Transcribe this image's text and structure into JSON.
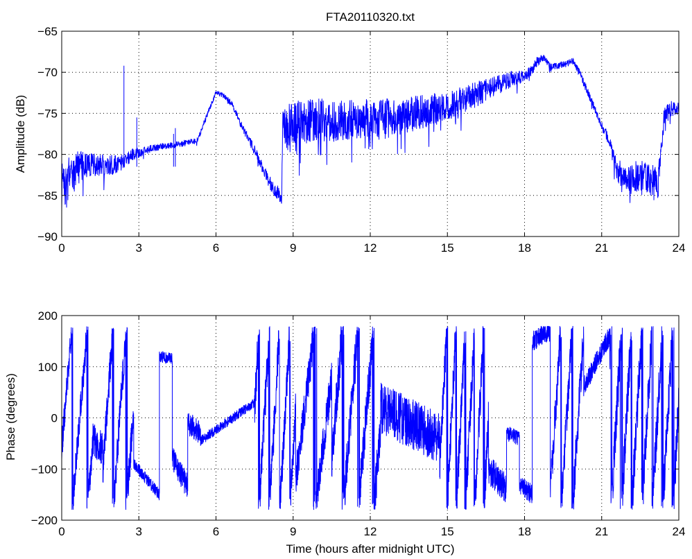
{
  "chart_data": [
    {
      "type": "line",
      "title": "FTA20110320.txt",
      "xlabel": "",
      "ylabel": "Amplitude (dB)",
      "xlim": [
        0,
        24
      ],
      "ylim": [
        -90,
        -65
      ],
      "xticks": [
        "0",
        "3",
        "6",
        "9",
        "12",
        "15",
        "18",
        "21",
        "24"
      ],
      "yticks": [
        "−90",
        "−85",
        "−80",
        "−75",
        "−70",
        "−65"
      ],
      "grid": true,
      "color": "#0000ff",
      "series": [
        {
          "x": [
            0,
            0.1,
            0.3,
            0.5,
            0.7,
            1.0,
            1.5,
            2.0,
            2.3,
            2.5,
            2.8,
            3.0,
            3.5,
            4.0,
            4.5,
            5.0,
            5.3,
            5.5,
            5.8,
            6.0,
            6.3,
            6.6,
            7.0,
            7.5,
            8.0,
            8.3,
            8.55,
            8.6,
            8.8,
            9.5,
            10.5,
            11.5,
            12.5,
            13.5,
            14.5,
            15.5,
            16.5,
            17.5,
            18.0,
            18.3,
            18.5,
            18.8,
            19.0,
            19.3,
            19.6,
            19.9,
            20.2,
            20.6,
            21.0,
            21.3,
            21.6,
            22.0,
            22.5,
            23.0,
            23.2,
            23.4,
            23.6,
            24.0
          ],
          "y": [
            -83.5,
            -84,
            -83,
            -82,
            -81.5,
            -81.3,
            -81.2,
            -81.3,
            -81,
            -80.7,
            -80,
            -79.8,
            -79.2,
            -79,
            -78.8,
            -78.5,
            -78.3,
            -76.5,
            -74,
            -72.5,
            -72.8,
            -73.8,
            -76.5,
            -79.5,
            -83,
            -84.5,
            -85,
            -77,
            -76.5,
            -76,
            -75.8,
            -75.7,
            -75.5,
            -75.2,
            -74.5,
            -73.5,
            -72.2,
            -70.8,
            -70.5,
            -69.7,
            -68.6,
            -68.2,
            -69.5,
            -69.2,
            -69,
            -68.6,
            -70.5,
            -73.5,
            -76.5,
            -78.5,
            -82,
            -83.2,
            -82.5,
            -83.5,
            -84,
            -76,
            -74.5,
            -74.3
          ],
          "noise": [
            2.5,
            2.5,
            3,
            2.5,
            2,
            1.4,
            1.4,
            1.2,
            1,
            0.9,
            0.8,
            0.6,
            0.5,
            0.4,
            0.4,
            0.4,
            0.4,
            0.4,
            0.3,
            0.3,
            0.3,
            0.4,
            0.5,
            0.6,
            0.8,
            1,
            1,
            2.5,
            3,
            2.8,
            2.6,
            2.4,
            2.3,
            2.2,
            2,
            1.8,
            1.4,
            1,
            0.7,
            0.6,
            0.6,
            0.4,
            0.6,
            0.4,
            0.4,
            0.4,
            0.5,
            0.5,
            0.5,
            0.9,
            1.5,
            1.8,
            2,
            2.2,
            2.2,
            1.5,
            1,
            0.8
          ]
        }
      ],
      "annotations": [
        {
          "x": 2.42,
          "y": -69.2
        },
        {
          "x": 2.92,
          "y": -75.5
        },
        {
          "x": 4.35,
          "y": -77.5
        },
        {
          "x": 4.42,
          "y": -76.8
        }
      ]
    },
    {
      "type": "line",
      "title": "",
      "xlabel": "Time (hours after midnight UTC)",
      "ylabel": "Phase (degrees)",
      "xlim": [
        0,
        24
      ],
      "ylim": [
        -200,
        200
      ],
      "xticks": [
        "0",
        "3",
        "6",
        "9",
        "12",
        "15",
        "18",
        "21",
        "24"
      ],
      "yticks": [
        "−200",
        "−100",
        "0",
        "100",
        "200"
      ],
      "grid": true,
      "color": "#0000ff",
      "series": [
        {
          "segments": [
            {
              "x0": 0,
              "x1": 1.2,
              "mode": "wrap",
              "start": -60,
              "rate": 600,
              "noise": 30
            },
            {
              "x0": 1.2,
              "x1": 1.6,
              "mode": "wander",
              "start": -40,
              "end": -60,
              "noise": 35
            },
            {
              "x0": 1.6,
              "x1": 2.8,
              "mode": "wrap",
              "start": -100,
              "rate": 700,
              "noise": 35
            },
            {
              "x0": 2.8,
              "x1": 3.8,
              "mode": "wander",
              "start": -90,
              "end": -150,
              "noise": 12
            },
            {
              "x0": 3.8,
              "x1": 4.3,
              "mode": "wander",
              "start": 120,
              "end": 115,
              "noise": 12
            },
            {
              "x0": 4.3,
              "x1": 4.9,
              "mode": "wander",
              "start": -80,
              "end": -135,
              "noise": 25
            },
            {
              "x0": 4.9,
              "x1": 5.4,
              "mode": "wander",
              "start": -10,
              "end": -30,
              "noise": 25
            },
            {
              "x0": 5.4,
              "x1": 7.5,
              "mode": "wander",
              "start": -45,
              "end": 30,
              "noise": 10
            },
            {
              "x0": 7.5,
              "x1": 9.1,
              "mode": "wrap",
              "start": 20,
              "rate": 900,
              "noise": 40
            },
            {
              "x0": 9.1,
              "x1": 10.5,
              "mode": "wrap",
              "start": -120,
              "rate": 400,
              "noise": 40
            },
            {
              "x0": 10.5,
              "x1": 12.4,
              "mode": "wrap",
              "start": -80,
              "rate": 600,
              "noise": 45
            },
            {
              "x0": 12.4,
              "x1": 14.7,
              "mode": "wander",
              "start": 20,
              "end": -40,
              "noise": 50
            },
            {
              "x0": 14.7,
              "x1": 16.6,
              "mode": "wrap",
              "start": -100,
              "rate": 1000,
              "noise": 40
            },
            {
              "x0": 16.6,
              "x1": 17.3,
              "mode": "wander",
              "start": -100,
              "end": -140,
              "noise": 30
            },
            {
              "x0": 17.3,
              "x1": 17.8,
              "mode": "wander",
              "start": -30,
              "end": -40,
              "noise": 15
            },
            {
              "x0": 17.8,
              "x1": 18.3,
              "mode": "wander",
              "start": -130,
              "end": -150,
              "noise": 20
            },
            {
              "x0": 18.3,
              "x1": 19.0,
              "mode": "wander",
              "start": 150,
              "end": 170,
              "noise": 20
            },
            {
              "x0": 19.0,
              "x1": 20.3,
              "mode": "wrap",
              "start": -150,
              "rate": 800,
              "noise": 40
            },
            {
              "x0": 20.3,
              "x1": 21.3,
              "mode": "wander",
              "start": 60,
              "end": 160,
              "noise": 20
            },
            {
              "x0": 21.3,
              "x1": 24.0,
              "mode": "wrap",
              "start": 120,
              "rate": 900,
              "noise": 45
            }
          ]
        }
      ]
    }
  ]
}
